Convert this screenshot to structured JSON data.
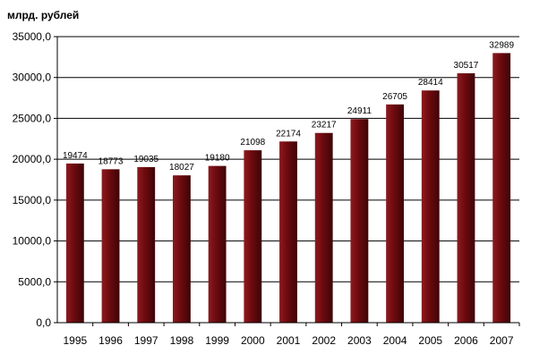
{
  "unit_label": "млрд. рублей",
  "colors": {
    "bar": "#6b0a0f",
    "bar_dark": "#3d0507",
    "bar_light": "#8e1a1f",
    "grid": "#000000",
    "axis": "#000000"
  },
  "chart_data": {
    "type": "bar",
    "title": "",
    "xlabel": "",
    "ylabel": "млрд. рублей",
    "categories": [
      "1995",
      "1996",
      "1997",
      "1998",
      "1999",
      "2000",
      "2001",
      "2002",
      "2003",
      "2004",
      "2005",
      "2006",
      "2007"
    ],
    "values": [
      19474,
      18773,
      19035,
      18027,
      19180,
      21098,
      22174,
      23217,
      24911,
      26705,
      28414,
      30517,
      32989
    ],
    "data_labels": [
      "19474",
      "18773",
      "19035",
      "18027",
      "19180",
      "21098",
      "22174",
      "23217",
      "24911",
      "26705",
      "28414",
      "30517",
      "32989"
    ],
    "ylim": [
      0,
      35000
    ],
    "yticks": [
      0,
      5000,
      10000,
      15000,
      20000,
      25000,
      30000,
      35000
    ],
    "ytick_labels": [
      "0,0",
      "5000,0",
      "10000,0",
      "15000,0",
      "20000,0",
      "25000,0",
      "30000,0",
      "35000,0"
    ],
    "grid": true,
    "legend": "none"
  }
}
